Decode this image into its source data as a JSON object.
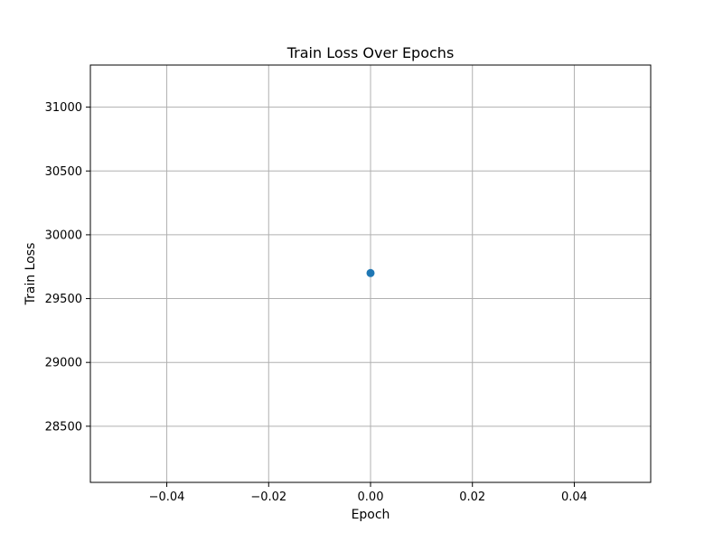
{
  "chart_data": {
    "type": "scatter",
    "title": "Train Loss Over Epochs",
    "xlabel": "Epoch",
    "ylabel": "Train Loss",
    "xlim": [
      -0.055,
      0.055
    ],
    "ylim": [
      28060,
      31330
    ],
    "xticks": [
      -0.04,
      -0.02,
      0.0,
      0.02,
      0.04
    ],
    "xtick_labels": [
      "−0.04",
      "−0.02",
      "0.00",
      "0.02",
      "0.04"
    ],
    "yticks": [
      28500,
      29000,
      29500,
      30000,
      30500,
      31000
    ],
    "ytick_labels": [
      "28500",
      "29000",
      "29500",
      "30000",
      "30500",
      "31000"
    ],
    "grid": true,
    "series": [
      {
        "color": "#1f77b4",
        "points": [
          {
            "x": 0,
            "y": 29700
          }
        ]
      }
    ]
  }
}
